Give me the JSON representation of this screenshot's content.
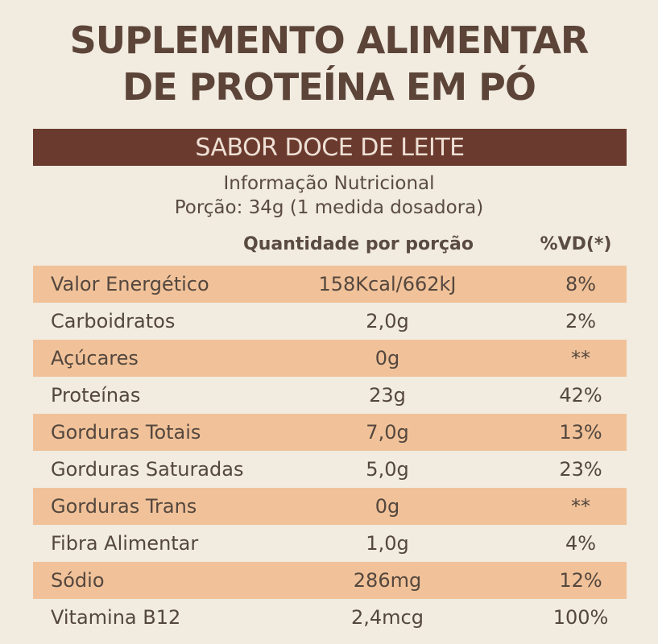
{
  "header": {
    "title_line1": "SUPLEMENTO ALIMENTAR",
    "title_line2": "DE PROTEÍNA EM PÓ",
    "flavor": "SABOR DOCE DE LEITE",
    "info_title": "Informação Nutricional",
    "serving": "Porção: 34g (1 medida dosadora)"
  },
  "columns": {
    "quantity": "Quantidade por porção",
    "dv": "%VD(*)"
  },
  "rows": [
    {
      "name": "Valor Energético",
      "qty": "158Kcal/662kJ",
      "dv": "8%"
    },
    {
      "name": "Carboidratos",
      "qty": "2,0g",
      "dv": "2%"
    },
    {
      "name": "Açúcares",
      "qty": "0g",
      "dv": "**"
    },
    {
      "name": "Proteínas",
      "qty": "23g",
      "dv": "42%"
    },
    {
      "name": "Gorduras Totais",
      "qty": "7,0g",
      "dv": "13%"
    },
    {
      "name": "Gorduras Saturadas",
      "qty": "5,0g",
      "dv": "23%"
    },
    {
      "name": "Gorduras Trans",
      "qty": "0g",
      "dv": "**"
    },
    {
      "name": "Fibra Alimentar",
      "qty": "1,0g",
      "dv": "4%"
    },
    {
      "name": "Sódio",
      "qty": "286mg",
      "dv": "12%"
    },
    {
      "name": "Vitamina B12",
      "qty": "2,4mcg",
      "dv": "100%"
    }
  ],
  "colors": {
    "background": "#f1ebe0",
    "title": "#5c4438",
    "flavor_bar": "#6b3a2e",
    "row_shade": "#f1c299"
  }
}
